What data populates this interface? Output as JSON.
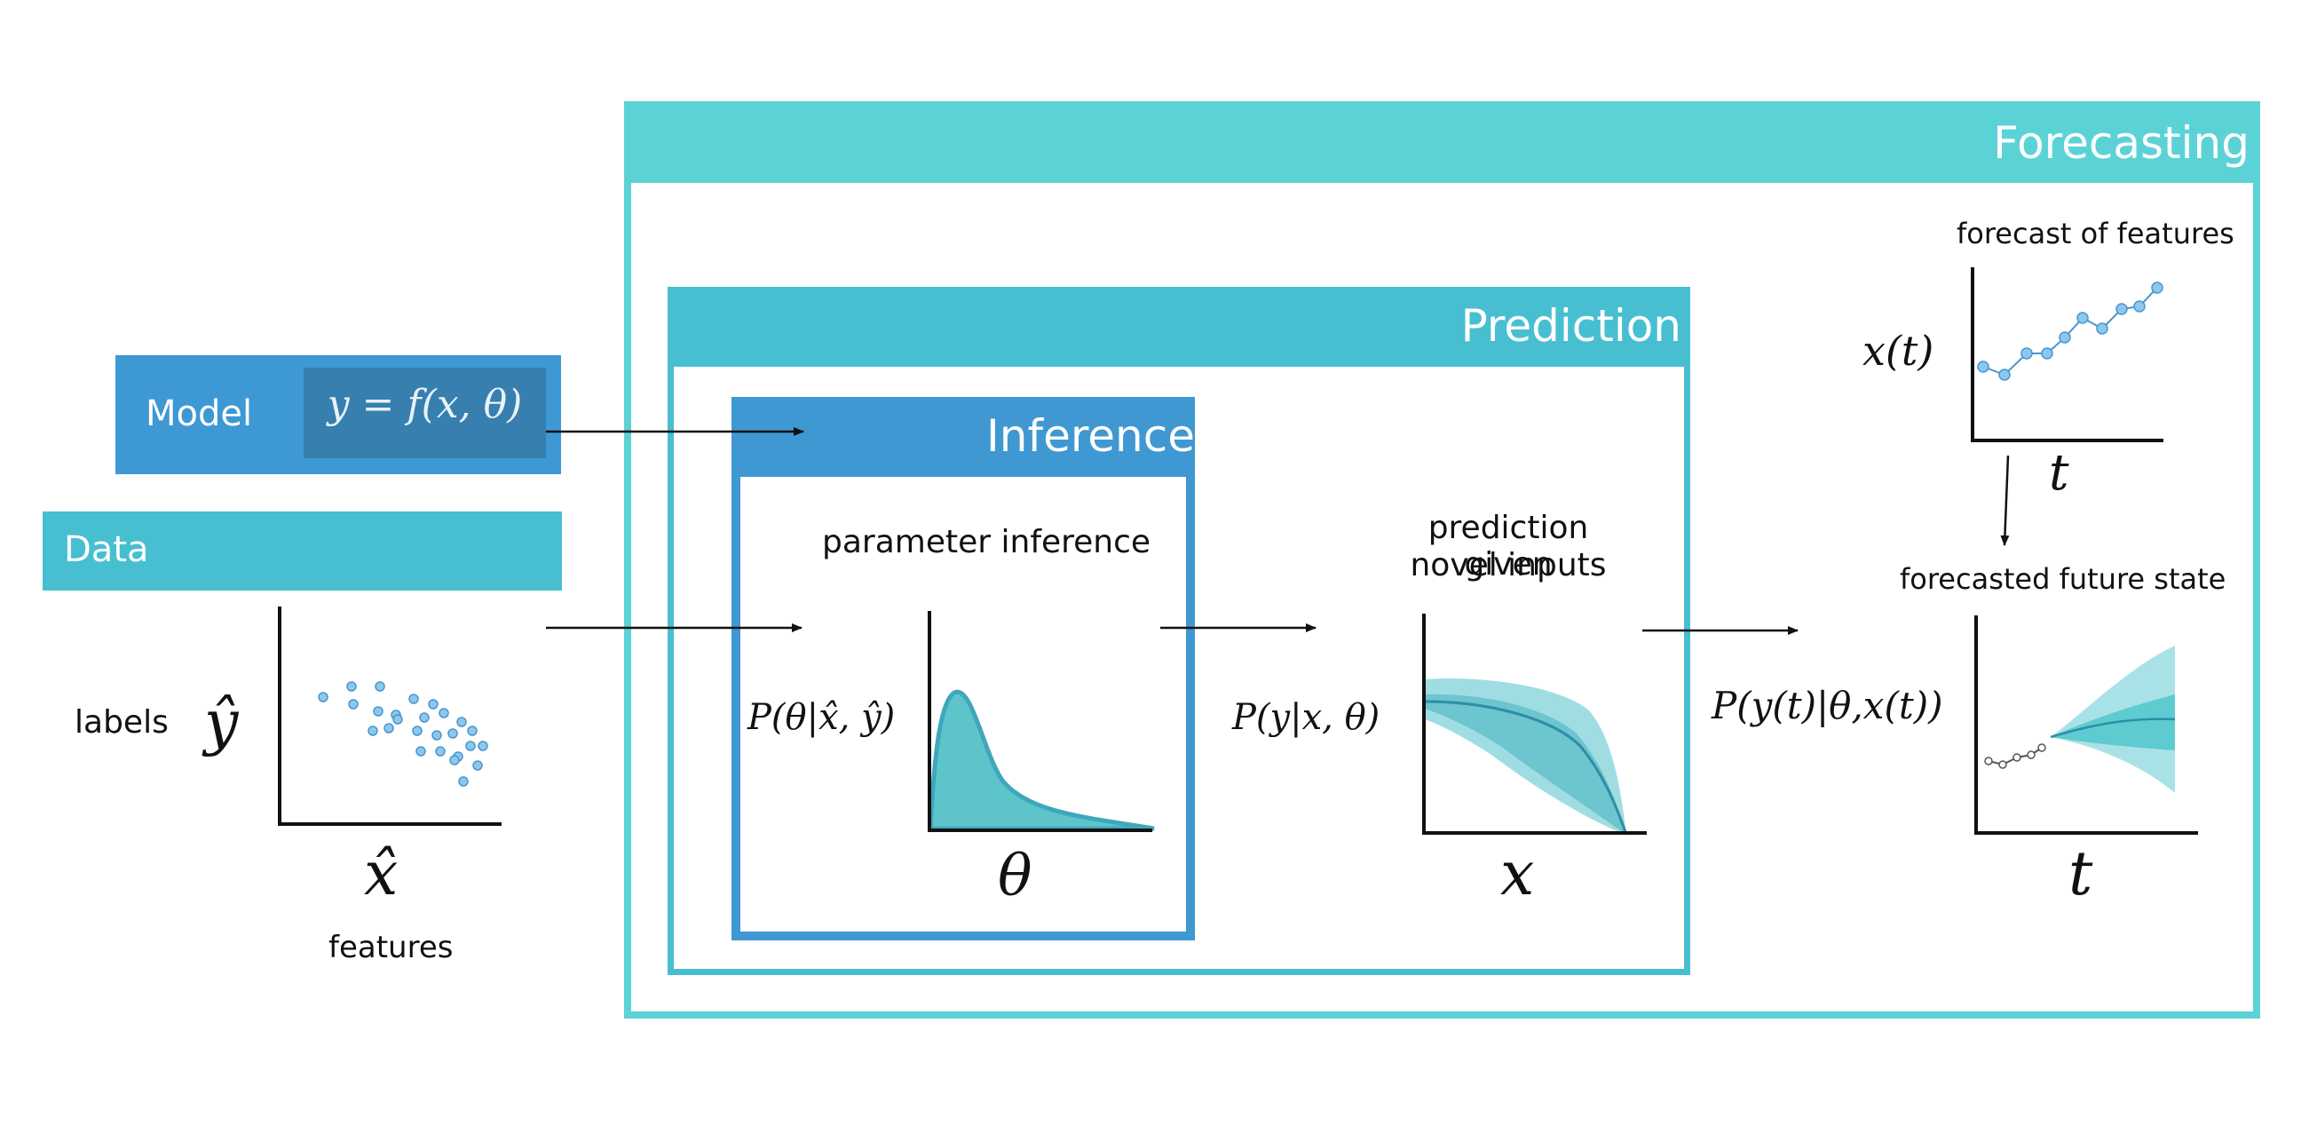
{
  "boxes": {
    "forecasting": "Forecasting",
    "prediction": "Prediction",
    "inference": "Inference",
    "model": "Model",
    "model_equation": "y = f(x, θ)",
    "data": "Data"
  },
  "data_panel": {
    "y_axis": "ŷ",
    "x_axis": "x̂",
    "y_caption": "labels",
    "x_caption": "features"
  },
  "inference_panel": {
    "caption": "parameter inference",
    "y_label": "P(θ|x̂, ŷ)",
    "x_axis": "θ"
  },
  "prediction_panel": {
    "caption_line1": "prediction given",
    "caption_line2": "novel inputs",
    "y_label": "P(y|x, θ)",
    "x_axis": "x"
  },
  "forecast_features_panel": {
    "caption": "forecast of features",
    "y_label": "x(t)",
    "x_axis": "t"
  },
  "forecast_state_panel": {
    "caption": "forecasted future state",
    "y_label": "P(y(t)|θ,x(t))",
    "x_axis": "t"
  },
  "colors": {
    "forecasting": "#5bd2d6",
    "prediction": "#48bfd1",
    "inference": "#3f98d1",
    "model": "#3e98d3",
    "data": "#48bfd1",
    "density_fill": "#5ec4cc",
    "density_line": "#3fa7bb",
    "point_fill": "#8cc8ee",
    "point_stroke": "#4b95cf"
  }
}
